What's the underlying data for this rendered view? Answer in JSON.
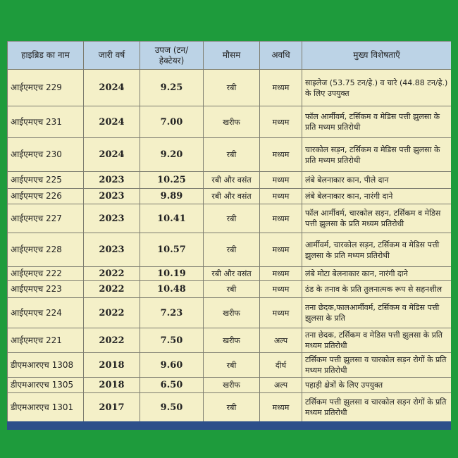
{
  "table": {
    "headers": [
      "हाइब्रिड का नाम",
      "जारी वर्ष",
      "उपज (टन/हेक्टेयर)",
      "मौसम",
      "अवधि",
      "मुख्य विशेषताएँ"
    ],
    "rows": [
      [
        "आईएमएच 229",
        "2024",
        "9.25",
        "रबी",
        "मध्यम",
        "साइलेज (53.75 टन/हे.) व चारे (44.88 टन/हे.) के लिए उपयुक्त"
      ],
      [
        "आईएमएच 231",
        "2024",
        "7.00",
        "खरीफ",
        "मध्यम",
        "फॉल आर्मीवर्म, टर्सिकम व मेडिस पत्ती झुलसा के प्रति मध्यम प्रतिरोधी"
      ],
      [
        "आईएमएच 230",
        "2024",
        "9.20",
        "रबी",
        "मध्यम",
        "चारकोल सड़न, टर्सिकम व मेडिस पत्ती झुलसा के प्रति मध्यम प्रतिरोधी"
      ],
      [
        "आईएमएच 225",
        "2023",
        "10.25",
        "रबी और वसंत",
        "मध्यम",
        "लंबे बेलनाकार कान, पीले दान"
      ],
      [
        "आईएमएच 226",
        "2023",
        "9.89",
        "रबी और वसंत",
        "मध्यम",
        "लंबे बेलनाकार कान, नारंगी दाने"
      ],
      [
        "आईएमएच 227",
        "2023",
        "10.41",
        "रबी",
        "मध्यम",
        "फॉल आर्मीवर्म, चारकोल सड़न, टर्सिकम व मेडिस पत्ती झुलसा के प्रति मध्यम प्रतिरोधी"
      ],
      [
        "आईएमएच 228",
        "2023",
        "10.57",
        "रबी",
        "मध्यम",
        "आर्मीवर्म, चारकोल सड़न, टर्सिकम व मेडिस पत्ती झुलसा के प्रति मध्यम प्रतिरोधी"
      ],
      [
        "आईएमएच 222",
        "2022",
        "10.19",
        "रबी और वसंत",
        "मध्यम",
        "लंबे मोटा बेलनाकार कान, नारंगी दाने"
      ],
      [
        "आईएमएच 223",
        "2022",
        "10.48",
        "रबी",
        "मध्यम",
        "ठंड के तनाव के प्रति तुलनात्मक रूप से सहनशील"
      ],
      [
        "आईएमएच 224",
        "2022",
        "7.23",
        "खरीफ",
        "मध्यम",
        "तना छेदक,फालआर्मीवर्म, टर्सिकम व मेडिस पत्ती झुलसा के प्रति"
      ],
      [
        "आईएमएच 221",
        "2022",
        "7.50",
        "खरीफ",
        "अल्प",
        "तना छेदक, टर्सिकम व मेडिस पत्ती झुलसा के प्रति मध्यम प्रतिरोधी"
      ],
      [
        "डीएमआरएच 1308",
        "2018",
        "9.60",
        "रबी",
        "दीर्घ",
        "टर्सिकम पत्ती झुलसा व चारकोल सड़न रोगों के प्रति मध्यम प्रतिरोधी"
      ],
      [
        "डीएमआरएच 1305",
        "2018",
        "6.50",
        "खरीफ",
        "अल्प",
        "पहाड़ी क्षेत्रों के लिए उपयुक्त"
      ],
      [
        "डीएमआरएच 1301",
        "2017",
        "9.50",
        "रबी",
        "मध्यम",
        "टर्सिकम पत्ती झुलसा व चारकोल सड़न रोगों के प्रति मध्यम प्रतिरोधी"
      ]
    ]
  }
}
